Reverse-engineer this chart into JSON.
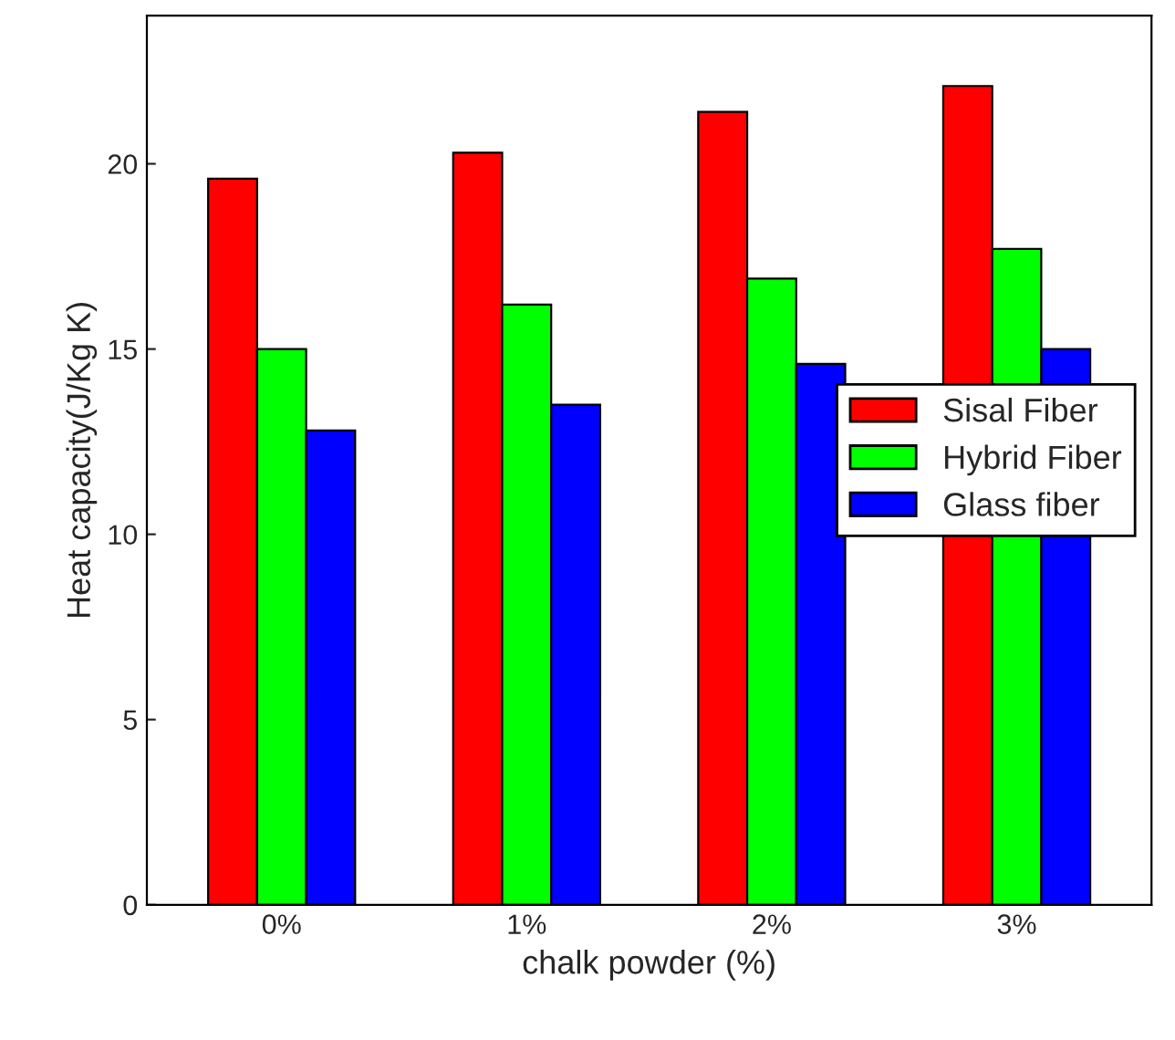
{
  "chart_data": {
    "type": "bar",
    "xlabel": "chalk powder (%)",
    "ylabel": "Heat capacity(J/Kg K)",
    "categories": [
      "0%",
      "1%",
      "2%",
      "3%"
    ],
    "series": [
      {
        "name": "Sisal Fiber",
        "color": "#ff0000",
        "values": [
          19.6,
          20.3,
          21.4,
          22.1
        ]
      },
      {
        "name": "Hybrid Fiber",
        "color": "#00ff00",
        "values": [
          15.0,
          16.2,
          16.9,
          17.7
        ]
      },
      {
        "name": "Glass fiber",
        "color": "#0000ff",
        "values": [
          12.8,
          13.5,
          14.6,
          15.0
        ]
      }
    ],
    "ylim": [
      0,
      24
    ],
    "yticks": [
      0,
      5,
      10,
      15,
      20
    ],
    "grid": false,
    "legend": "center right"
  }
}
